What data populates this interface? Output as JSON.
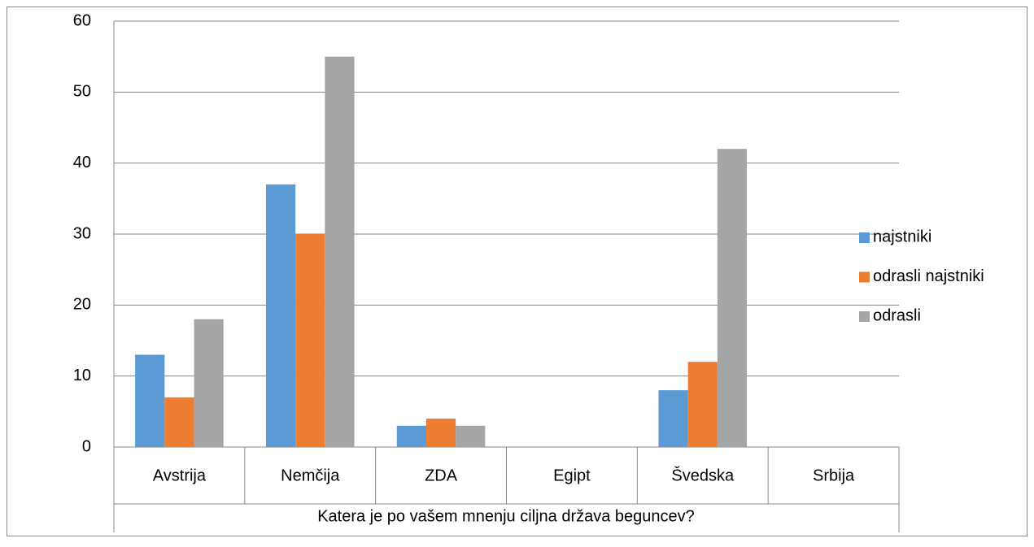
{
  "chart_data": {
    "type": "bar",
    "xlabel": "Katera je po vašem mnenju ciljna država beguncev?",
    "categories": [
      "Avstrija",
      "Nemčija",
      "ZDA",
      "Egipt",
      "Švedska",
      "Srbija"
    ],
    "series": [
      {
        "name": "najstniki",
        "color": "#5b9bd5",
        "values": [
          13,
          37,
          3,
          0,
          8,
          0
        ]
      },
      {
        "name": "odrasli najstniki",
        "color": "#ed7d31",
        "values": [
          7,
          30,
          4,
          0,
          12,
          0
        ]
      },
      {
        "name": "odrasli",
        "color": "#a5a5a5",
        "values": [
          18,
          55,
          3,
          0,
          42,
          0
        ]
      }
    ],
    "ylim": [
      0,
      60
    ],
    "yticks": [
      0,
      10,
      20,
      30,
      40,
      50,
      60
    ],
    "grid": true,
    "legend": "right"
  }
}
